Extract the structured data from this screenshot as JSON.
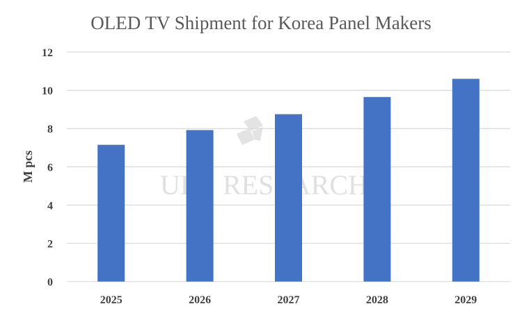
{
  "chart_data": {
    "type": "bar",
    "title": "OLED TV Shipment for Korea Panel Makers",
    "xlabel": "",
    "ylabel": "M pcs",
    "categories": [
      "2025",
      "2026",
      "2027",
      "2028",
      "2029"
    ],
    "values": [
      7.15,
      7.92,
      8.75,
      9.65,
      10.6
    ],
    "ylim": [
      0,
      12
    ],
    "yticks": [
      0,
      2,
      4,
      6,
      8,
      10,
      12
    ],
    "grid": true,
    "bar_color": "#4472c4",
    "watermark": "UBI RESEARCH"
  }
}
